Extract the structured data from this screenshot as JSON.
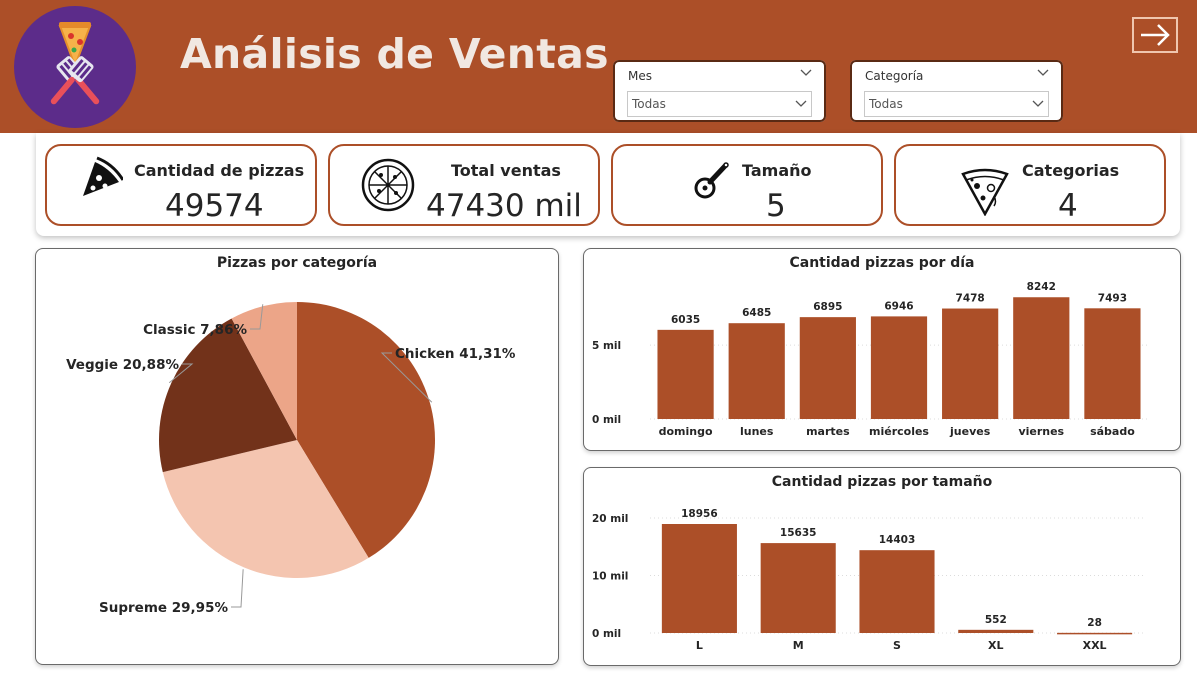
{
  "header": {
    "title": "Análisis de Ventas",
    "exit_icon": "arrow-right-icon",
    "logo_icon": "pizza-spatulas-logo"
  },
  "filters": [
    {
      "label": "Mes",
      "value": "Todas"
    },
    {
      "label": "Categoría",
      "value": "Todas"
    }
  ],
  "kpis": [
    {
      "label": "Cantidad de pizzas",
      "value": "49574",
      "icon": "pizza-slice-icon"
    },
    {
      "label": "Total ventas",
      "value": "47430 mil",
      "icon": "whole-pizza-icon"
    },
    {
      "label": "Tamaño",
      "value": "5",
      "icon": "pizza-cutter-icon"
    },
    {
      "label": "Categorias",
      "value": "4",
      "icon": "pizza-toppings-icon"
    }
  ],
  "colors": {
    "brand": "#ac4f28",
    "bar": "#ac4f28"
  },
  "chart_data": [
    {
      "type": "pie",
      "title": "Pizzas por categoría",
      "slices": [
        {
          "label": "Chicken",
          "value": 41.31,
          "value_label": "41,31%",
          "color": "#ac4f28"
        },
        {
          "label": "Supreme",
          "value": 29.95,
          "value_label": "29,95%",
          "color": "#f4c5b0"
        },
        {
          "label": "Veggie",
          "value": 20.88,
          "value_label": "20,88%",
          "color": "#72321a"
        },
        {
          "label": "Classic",
          "value": 7.86,
          "value_label": "7,86%",
          "color": "#eca588"
        }
      ]
    },
    {
      "type": "bar",
      "title": "Cantidad pizzas por día",
      "categories": [
        "domingo",
        "lunes",
        "martes",
        "miércoles",
        "jueves",
        "viernes",
        "sábado"
      ],
      "values": [
        6035,
        6485,
        6895,
        6946,
        7478,
        8242,
        7493
      ],
      "yticks": [
        {
          "value": 0,
          "label": "0 mil"
        },
        {
          "value": 5000,
          "label": "5 mil"
        }
      ],
      "ylim": [
        0,
        8800
      ]
    },
    {
      "type": "bar",
      "title": "Cantidad pizzas por tamaño",
      "categories": [
        "L",
        "M",
        "S",
        "XL",
        "XXL"
      ],
      "values": [
        18956,
        15635,
        14403,
        552,
        28
      ],
      "yticks": [
        {
          "value": 0,
          "label": "0 mil"
        },
        {
          "value": 10000,
          "label": "10 mil"
        },
        {
          "value": 20000,
          "label": "20 mil"
        }
      ],
      "ylim": [
        0,
        20000
      ]
    }
  ]
}
